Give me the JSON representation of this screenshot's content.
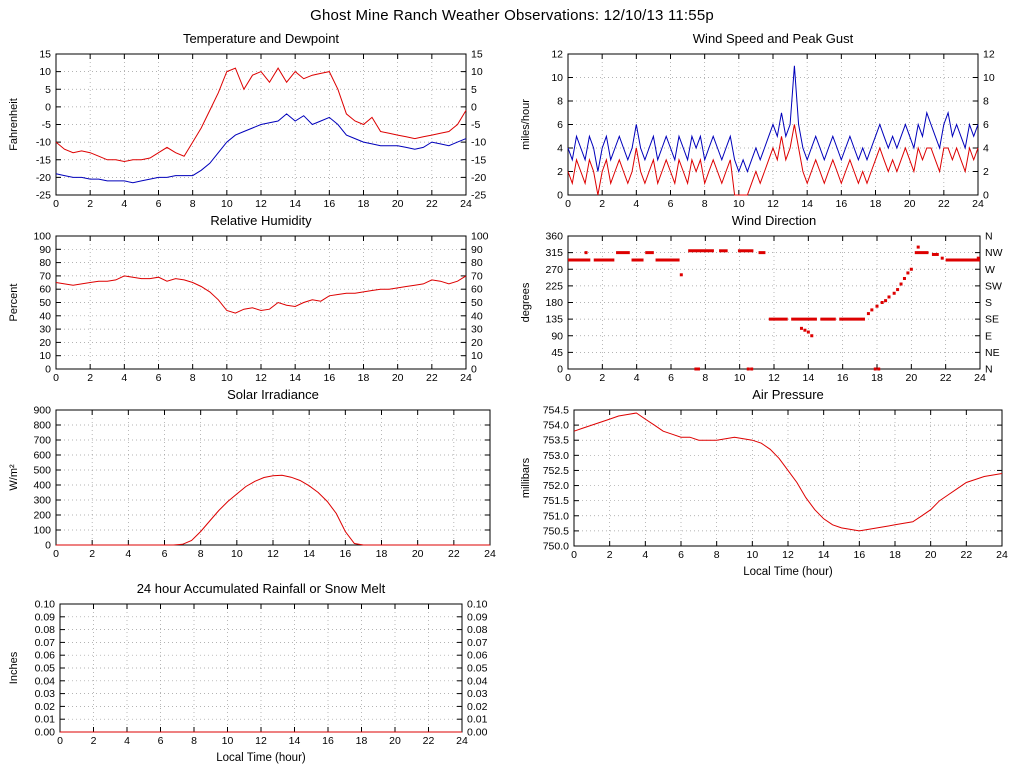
{
  "page_title": "Ghost Mine Ranch Weather Observations: 12/10/13 11:55p",
  "colors": {
    "red": "#dd0000",
    "blue": "#0000bb",
    "grid": "#9a9a9a",
    "axis": "#000000"
  },
  "chart_data": [
    {
      "id": "temperature-dewpoint",
      "type": "line",
      "title": "Temperature and Dewpoint",
      "ylabel": "Fahrenheit",
      "ylim": [
        -25,
        15
      ],
      "ytick": 5,
      "ydecimals": 0,
      "xlim": [
        0,
        24
      ],
      "xtick": 2,
      "right_ticks": true,
      "grid": true,
      "series": [
        {
          "name": "Temperature",
          "color": "red",
          "x0": 0,
          "dx": 0.5,
          "y": [
            -10,
            -12,
            -13,
            -12.5,
            -13,
            -14,
            -15,
            -15,
            -15.5,
            -15,
            -15,
            -14.5,
            -13,
            -11.5,
            -13,
            -14,
            -10,
            -6,
            -1,
            4,
            10,
            11,
            5,
            9,
            10,
            7,
            11,
            7,
            10,
            8,
            9,
            9.5,
            10,
            5,
            -2,
            -4,
            -5,
            -3,
            -7,
            -7.5,
            -8,
            -8.5,
            -9,
            -8.5,
            -8,
            -7.5,
            -7,
            -5,
            -1
          ]
        },
        {
          "name": "Dewpoint",
          "color": "blue",
          "x0": 0,
          "dx": 0.5,
          "y": [
            -19,
            -19.5,
            -20,
            -20,
            -20.5,
            -20.5,
            -21,
            -21,
            -21,
            -21.5,
            -21,
            -20.5,
            -20,
            -20,
            -19.5,
            -19.5,
            -19.5,
            -18,
            -16,
            -13,
            -10,
            -8,
            -7,
            -6,
            -5,
            -4.5,
            -4,
            -2,
            -4,
            -2.5,
            -5,
            -4,
            -3,
            -5,
            -8,
            -9,
            -10,
            -10.5,
            -11,
            -11,
            -11,
            -11.5,
            -12,
            -11.5,
            -10,
            -10.5,
            -11,
            -10,
            -9
          ]
        }
      ]
    },
    {
      "id": "wind-speed-gust",
      "type": "line",
      "title": "Wind Speed and Peak Gust",
      "ylabel": "miles/hour",
      "ylim": [
        0,
        12
      ],
      "ytick": 2,
      "ydecimals": 0,
      "xlim": [
        0,
        24
      ],
      "xtick": 2,
      "right_ticks": true,
      "grid": true,
      "series": [
        {
          "name": "Peak Gust",
          "color": "blue",
          "x0": 0,
          "dx": 0.25,
          "y": [
            4,
            3,
            5,
            4,
            3,
            5,
            4,
            2,
            4,
            5,
            3,
            4,
            5,
            4,
            3,
            4,
            6,
            4,
            3,
            4,
            5,
            3,
            4,
            5,
            4,
            3,
            5,
            4,
            3,
            5,
            4,
            5,
            3,
            4,
            5,
            4,
            3,
            4,
            5,
            3,
            2,
            3,
            2,
            3,
            4,
            3,
            4,
            5,
            6,
            5,
            7,
            5,
            6,
            11,
            6,
            4,
            3,
            4,
            5,
            4,
            3,
            4,
            5,
            4,
            3,
            4,
            5,
            4,
            3,
            4,
            3,
            4,
            5,
            6,
            5,
            4,
            5,
            4,
            5,
            6,
            5,
            4,
            6,
            5,
            7,
            6,
            5,
            4,
            6,
            7,
            5,
            6,
            5,
            4,
            6,
            5,
            6
          ]
        },
        {
          "name": "Wind Speed",
          "color": "red",
          "x0": 0,
          "dx": 0.25,
          "y": [
            2,
            1,
            3,
            2,
            1,
            3,
            2,
            0,
            2,
            3,
            1,
            2,
            3,
            2,
            1,
            2,
            4,
            2,
            1,
            2,
            3,
            1,
            2,
            3,
            2,
            1,
            3,
            2,
            1,
            3,
            2,
            3,
            1,
            2,
            3,
            2,
            1,
            2,
            3,
            0,
            0,
            0,
            0,
            1,
            2,
            1,
            2,
            3,
            4,
            3,
            5,
            3,
            4,
            6,
            4,
            2,
            1,
            2,
            3,
            2,
            1,
            2,
            3,
            2,
            1,
            2,
            3,
            2,
            1,
            2,
            1,
            2,
            3,
            4,
            3,
            2,
            3,
            2,
            3,
            4,
            3,
            2,
            4,
            3,
            4,
            4,
            3,
            2,
            4,
            4,
            3,
            4,
            3,
            2,
            4,
            3,
            4
          ]
        }
      ]
    },
    {
      "id": "relative-humidity",
      "type": "line",
      "title": "Relative Humidity",
      "ylabel": "Percent",
      "ylim": [
        0,
        100
      ],
      "ytick": 10,
      "ydecimals": 0,
      "xlim": [
        0,
        24
      ],
      "xtick": 2,
      "right_ticks": true,
      "grid": true,
      "series": [
        {
          "name": "Relative Humidity",
          "color": "red",
          "x0": 0,
          "dx": 0.5,
          "y": [
            65,
            64,
            63,
            64,
            65,
            66,
            66,
            67,
            70,
            69,
            68,
            68,
            69,
            66,
            68,
            67,
            65,
            62,
            58,
            52,
            44,
            42,
            45,
            46,
            44,
            45,
            50,
            48,
            47,
            50,
            52,
            51,
            55,
            56,
            57,
            57,
            58,
            59,
            60,
            60,
            61,
            62,
            63,
            64,
            67,
            66,
            64,
            66,
            70
          ]
        }
      ]
    },
    {
      "id": "wind-direction",
      "type": "scatter",
      "title": "Wind Direction",
      "ylabel": "degrees",
      "ylim": [
        0,
        360
      ],
      "ytick": 45,
      "ydecimals": 0,
      "xlim": [
        0,
        24
      ],
      "xtick": 2,
      "right_compass": [
        "N",
        "NE",
        "E",
        "SE",
        "S",
        "SW",
        "W",
        "NW",
        "N"
      ],
      "grid": true,
      "series": [
        {
          "name": "Wind Direction",
          "color": "red",
          "segments": [
            [
              0.0,
              1.3,
              295
            ],
            [
              1.5,
              2.7,
              295
            ],
            [
              2.8,
              3.6,
              315
            ],
            [
              3.7,
              4.4,
              295
            ],
            [
              4.5,
              5.0,
              315
            ],
            [
              5.1,
              6.5,
              295
            ],
            [
              7.0,
              8.5,
              320
            ],
            [
              8.8,
              9.3,
              320
            ],
            [
              9.9,
              10.8,
              320
            ],
            [
              11.1,
              11.5,
              315
            ],
            [
              11.7,
              12.8,
              135
            ],
            [
              13.0,
              14.5,
              135
            ],
            [
              14.7,
              15.6,
              135
            ],
            [
              15.8,
              17.3,
              135
            ],
            [
              20.2,
              21.0,
              315
            ],
            [
              21.2,
              21.6,
              310
            ],
            [
              22.0,
              24.0,
              295
            ]
          ],
          "points": [
            [
              1.05,
              315
            ],
            [
              6.6,
              255
            ],
            [
              7.45,
              0
            ],
            [
              7.6,
              0
            ],
            [
              10.5,
              0
            ],
            [
              10.7,
              0
            ],
            [
              13.6,
              110
            ],
            [
              13.8,
              105
            ],
            [
              14.0,
              100
            ],
            [
              14.2,
              90
            ],
            [
              17.5,
              150
            ],
            [
              17.7,
              160
            ],
            [
              17.9,
              0
            ],
            [
              18.1,
              0
            ],
            [
              18.0,
              170
            ],
            [
              18.3,
              180
            ],
            [
              18.5,
              185
            ],
            [
              18.7,
              195
            ],
            [
              19.0,
              205
            ],
            [
              19.2,
              215
            ],
            [
              19.4,
              230
            ],
            [
              19.6,
              245
            ],
            [
              19.8,
              260
            ],
            [
              20.0,
              270
            ],
            [
              20.4,
              330
            ],
            [
              21.8,
              300
            ],
            [
              23.9,
              300
            ]
          ]
        }
      ]
    },
    {
      "id": "solar-irradiance",
      "type": "line",
      "title": "Solar Irradiance",
      "ylabel": "W/m²",
      "ylim": [
        0,
        900
      ],
      "ytick": 100,
      "ydecimals": 0,
      "xlim": [
        0,
        24
      ],
      "xtick": 2,
      "right_ticks": false,
      "grid": true,
      "series": [
        {
          "name": "Solar Irradiance",
          "color": "red",
          "x0": 0,
          "dx": 0.5,
          "y": [
            0,
            0,
            0,
            0,
            0,
            0,
            0,
            0,
            0,
            0,
            0,
            0,
            0,
            0,
            5,
            30,
            90,
            160,
            230,
            290,
            340,
            390,
            425,
            450,
            462,
            465,
            452,
            430,
            395,
            350,
            290,
            210,
            90,
            10,
            0,
            0,
            0,
            0,
            0,
            0,
            0,
            0,
            0,
            0,
            0,
            0,
            0,
            0,
            0
          ]
        }
      ]
    },
    {
      "id": "air-pressure",
      "type": "line",
      "title": "Air Pressure",
      "ylabel": "millibars",
      "xlabel": "Local Time (hour)",
      "ylim": [
        750.0,
        754.5
      ],
      "ytick": 0.5,
      "ydecimals": 1,
      "xlim": [
        0,
        24
      ],
      "xtick": 2,
      "right_ticks": false,
      "grid": true,
      "series": [
        {
          "name": "Air Pressure",
          "color": "red",
          "x0": 0,
          "dx": 0.5,
          "y": [
            753.8,
            753.9,
            754.0,
            754.1,
            754.2,
            754.3,
            754.35,
            754.4,
            754.2,
            754.0,
            753.8,
            753.7,
            753.6,
            753.6,
            753.5,
            753.5,
            753.5,
            753.55,
            753.6,
            753.55,
            753.5,
            753.4,
            753.2,
            752.9,
            752.5,
            752.1,
            751.6,
            751.2,
            750.9,
            750.7,
            750.6,
            750.55,
            750.5,
            750.55,
            750.6,
            750.65,
            750.7,
            750.75,
            750.8,
            751.0,
            751.2,
            751.5,
            751.7,
            751.9,
            752.1,
            752.2,
            752.3,
            752.35,
            752.4
          ]
        }
      ]
    },
    {
      "id": "rainfall",
      "type": "line",
      "title": "24 hour Accumulated Rainfall or Snow Melt",
      "ylabel": "Inches",
      "xlabel": "Local Time (hour)",
      "ylim": [
        0.0,
        0.1
      ],
      "ytick": 0.01,
      "ydecimals": 2,
      "xlim": [
        0,
        24
      ],
      "xtick": 2,
      "right_ticks": true,
      "grid": true,
      "series": [
        {
          "name": "Accumulated Rainfall",
          "color": "red",
          "x0": 0,
          "dx": 24,
          "y": [
            0,
            0
          ]
        }
      ]
    }
  ]
}
